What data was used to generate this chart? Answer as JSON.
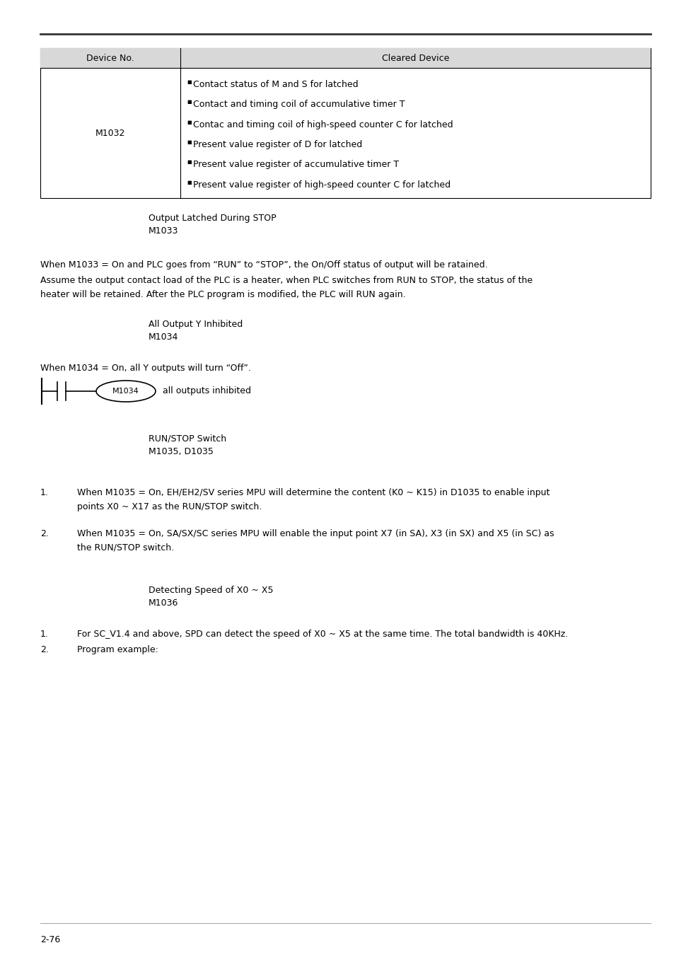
{
  "page_number": "2-76",
  "bg_color": "#ffffff",
  "text_color": "#000000",
  "table_header": [
    "Device No.",
    "Cleared Device"
  ],
  "table_header_bg": "#d8d8d8",
  "table_device": "M1032",
  "table_items": [
    "Contact status of M and S for latched",
    "Contact and timing coil of accumulative timer T",
    "Contac and timing coil of high-speed counter C for latched",
    "Present value register of D for latched",
    "Present value register of accumulative timer T",
    "Present value register of high-speed counter C for latched"
  ],
  "sec1_line1": "Output Latched During STOP",
  "sec1_line2": "M1033",
  "para1": "When M1033 = On and PLC goes from “RUN” to “STOP”, the On/Off status of output will be ratained.",
  "para2a": "Assume the output contact load of the PLC is a heater, when PLC switches from RUN to STOP, the status of the",
  "para2b": "heater will be retained. After the PLC program is modified, the PLC will RUN again.",
  "sec2_line1": "All Output Y Inhibited",
  "sec2_line2": "M1034",
  "para3": "When M1034 = On, all Y outputs will turn “Off”.",
  "ladder_label": "M1034",
  "ladder_desc": "all outputs inhibited",
  "sec3_line1": "RUN/STOP Switch",
  "sec3_line2": "M1035, D1035",
  "ni1a": "When M1035 = On, EH/EH2/SV series MPU will determine the content (K0 ~ K15) in D1035 to enable input",
  "ni1b": "points X0 ~ X17 as the RUN/STOP switch.",
  "ni2a": "When M1035 = On, SA/SX/SC series MPU will enable the input point X7 (in SA), X3 (in SX) and X5 (in SC) as",
  "ni2b": "the RUN/STOP switch.",
  "sec4_line1": "Detecting Speed of X0 ~ X5",
  "sec4_line2": "M1036",
  "ni3": "For SC_V1.4 and above, SPD can detect the speed of X0 ~ X5 at the same time. The total bandwidth is 40KHz.",
  "ni4": "Program example:"
}
